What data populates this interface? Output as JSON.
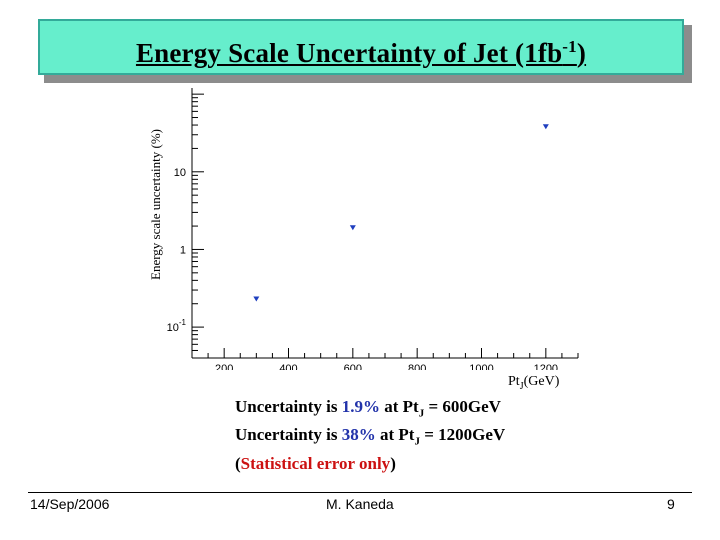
{
  "slide": {
    "title_main": "Energy Scale Uncertainty of Jet (1fb",
    "title_sup": "-1",
    "title_end": ")"
  },
  "chart_data": {
    "type": "scatter",
    "ylabel": "Energy scale uncertainty (%)",
    "xlabel_main": "Pt",
    "xlabel_sub": "J",
    "xlabel_unit": "(GeV)",
    "xlim": [
      100,
      1300
    ],
    "ylim": [
      0.04,
      120
    ],
    "yscale": "log",
    "x_ticks": [
      "200",
      "400",
      "600",
      "800",
      "1000",
      "1200"
    ],
    "y_ticks": [
      {
        "base": "10",
        "exp": "-1"
      },
      {
        "base": "1",
        "exp": ""
      },
      {
        "base": "10",
        "exp": ""
      }
    ],
    "series": [
      {
        "x": [
          300,
          600,
          1200
        ],
        "y": [
          0.23,
          1.9,
          38
        ],
        "color": "#1f3fbf",
        "marker": "triangle-down"
      }
    ]
  },
  "notes": {
    "line1_pre": "Uncertainty is ",
    "line1_val": "1.9%",
    "line1_mid": " at Pt",
    "line1_sub": "J",
    "line1_post": " = 600GeV",
    "line2_pre": "Uncertainty is ",
    "line2_val": "38%",
    "line2_mid": " at Pt",
    "line2_sub": "J",
    "line2_post": " = 1200GeV",
    "line3_open": "(",
    "line3_val": "Statistical error only",
    "line3_close": ")"
  },
  "footer": {
    "date": "14/Sep/2006",
    "author": "M. Kaneda",
    "page": "9"
  }
}
